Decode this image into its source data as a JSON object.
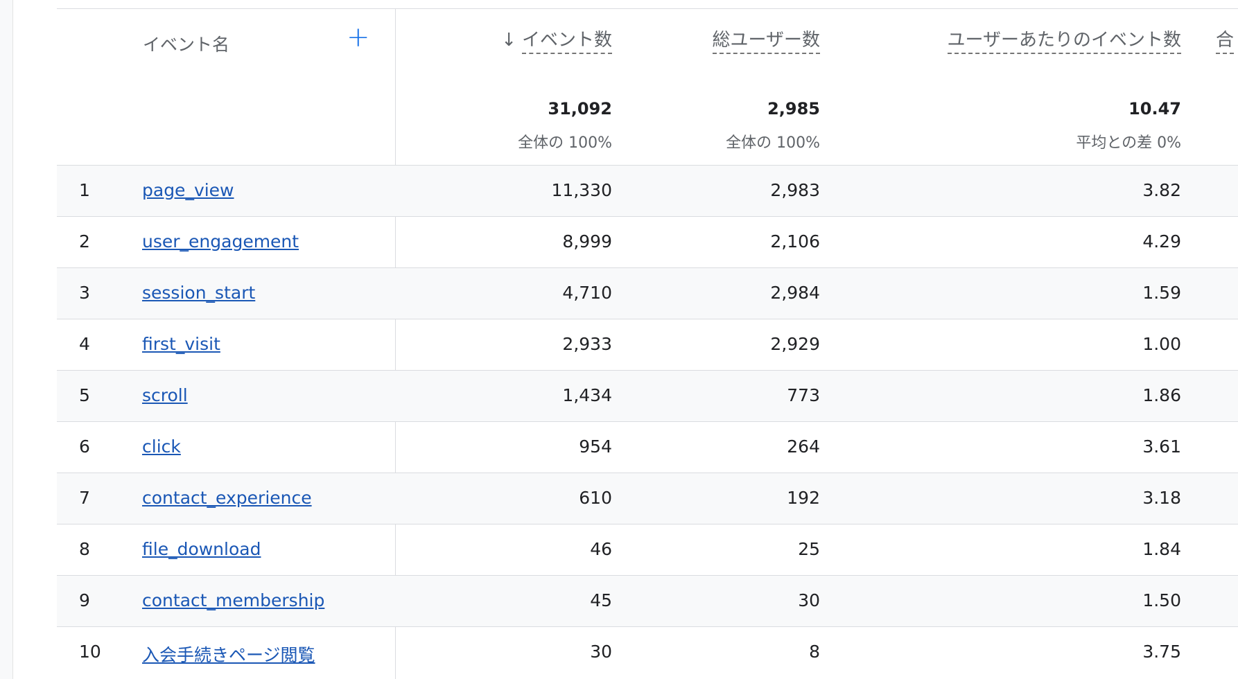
{
  "header": {
    "name_col": "イベント名",
    "add_label": "+",
    "sort_icon": "↓",
    "columns": [
      "イベント数",
      "総ユーザー数",
      "ユーザーあたりのイベント数",
      "合"
    ]
  },
  "totals": {
    "events": "31,092",
    "events_sub": "全体の 100%",
    "users": "2,985",
    "users_sub": "全体の 100%",
    "per_user": "10.47",
    "per_user_sub": "平均との差 0%"
  },
  "rows": [
    {
      "idx": "1",
      "name": "page_view",
      "events": "11,330",
      "users": "2,983",
      "per_user": "3.82"
    },
    {
      "idx": "2",
      "name": "user_engagement",
      "events": "8,999",
      "users": "2,106",
      "per_user": "4.29"
    },
    {
      "idx": "3",
      "name": "session_start",
      "events": "4,710",
      "users": "2,984",
      "per_user": "1.59"
    },
    {
      "idx": "4",
      "name": "first_visit",
      "events": "2,933",
      "users": "2,929",
      "per_user": "1.00"
    },
    {
      "idx": "5",
      "name": "scroll",
      "events": "1,434",
      "users": "773",
      "per_user": "1.86"
    },
    {
      "idx": "6",
      "name": "click",
      "events": "954",
      "users": "264",
      "per_user": "3.61"
    },
    {
      "idx": "7",
      "name": "contact_experience",
      "events": "610",
      "users": "192",
      "per_user": "3.18"
    },
    {
      "idx": "8",
      "name": "file_download",
      "events": "46",
      "users": "25",
      "per_user": "1.84"
    },
    {
      "idx": "9",
      "name": "contact_membership",
      "events": "45",
      "users": "30",
      "per_user": "1.50"
    },
    {
      "idx": "10",
      "name": "入会手続きページ閲覧",
      "events": "30",
      "users": "8",
      "per_user": "3.75"
    }
  ],
  "colors": {
    "accent": "#1a73e8",
    "link": "#1a57b5",
    "row_alt": "#f8f9fa",
    "border": "#dadce0"
  }
}
